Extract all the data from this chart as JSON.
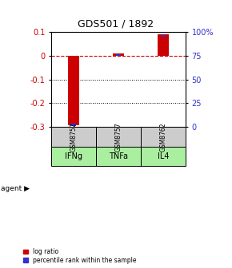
{
  "title": "GDS501 / 1892",
  "samples": [
    "GSM8752",
    "GSM8757",
    "GSM8762"
  ],
  "agents": [
    "IFNg",
    "TNFa",
    "IL4"
  ],
  "log_ratios": [
    -0.295,
    0.01,
    0.092
  ],
  "percentile_ranks": [
    2.0,
    76.0,
    96.0
  ],
  "ylim_left": [
    -0.3,
    0.1
  ],
  "ylim_right": [
    0,
    100
  ],
  "yticks_left": [
    -0.3,
    -0.2,
    -0.1,
    0.0,
    0.1
  ],
  "yticks_right": [
    0,
    25,
    50,
    75,
    100
  ],
  "ytick_labels_right": [
    "0",
    "25",
    "50",
    "75",
    "100%"
  ],
  "red_color": "#cc0000",
  "blue_color": "#3333cc",
  "gray_box_color": "#cccccc",
  "green_box_color": "#aaeea0",
  "legend_red": "log ratio",
  "legend_blue": "percentile rank within the sample",
  "agent_label": "agent"
}
